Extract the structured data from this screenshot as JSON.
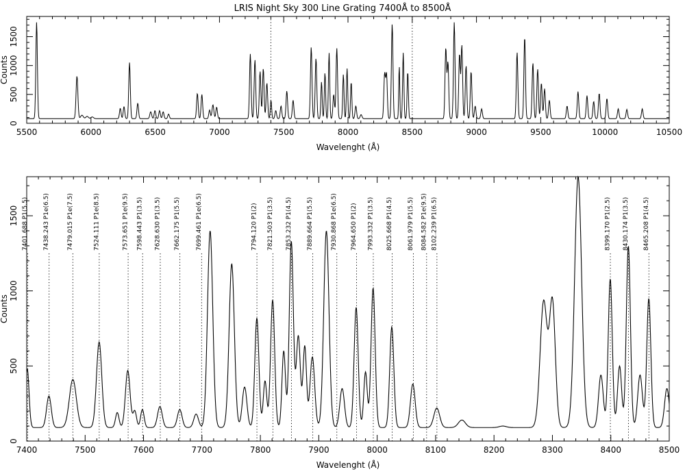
{
  "chart_data": [
    {
      "type": "line",
      "title": "LRIS Night Sky 300 Line Grating 7400Å to 8500Å",
      "xlabel": "Wavelenght (Å)",
      "ylabel": "Counts",
      "xlim": [
        5500,
        10500
      ],
      "ylim": [
        0,
        1850
      ],
      "xticks": [
        5500,
        6000,
        6500,
        7000,
        7500,
        8000,
        8500,
        9000,
        9500,
        10000,
        10500
      ],
      "yticks": [
        0,
        500,
        1000,
        1500
      ],
      "vlines": [
        7400,
        8500
      ],
      "baseline": 80,
      "peaks": [
        [
          5577,
          1750,
          6
        ],
        [
          5891,
          820,
          7
        ],
        [
          5930,
          140,
          10
        ],
        [
          5970,
          120,
          10
        ],
        [
          6010,
          110,
          10
        ],
        [
          6228,
          260,
          6
        ],
        [
          6257,
          290,
          6
        ],
        [
          6300,
          1050,
          6
        ],
        [
          6364,
          350,
          6
        ],
        [
          6465,
          200,
          7
        ],
        [
          6498,
          220,
          6
        ],
        [
          6534,
          220,
          6
        ],
        [
          6562,
          200,
          6
        ],
        [
          6604,
          160,
          6
        ],
        [
          6828,
          520,
          6
        ],
        [
          6863,
          500,
          6
        ],
        [
          6923,
          230,
          6
        ],
        [
          6949,
          320,
          7
        ],
        [
          6978,
          280,
          6
        ],
        [
          7240,
          1200,
          6
        ],
        [
          7276,
          1100,
          6
        ],
        [
          7316,
          900,
          6
        ],
        [
          7341,
          950,
          6
        ],
        [
          7369,
          700,
          6
        ],
        [
          7401,
          400,
          5
        ],
        [
          7438,
          220,
          6
        ],
        [
          7479,
          300,
          6
        ],
        [
          7524,
          560,
          6
        ],
        [
          7573,
          400,
          6
        ],
        [
          7714,
          1320,
          6
        ],
        [
          7751,
          1130,
          6
        ],
        [
          7794,
          720,
          5
        ],
        [
          7821,
          880,
          5
        ],
        [
          7853,
          1220,
          5
        ],
        [
          7889,
          500,
          6
        ],
        [
          7913,
          1300,
          6
        ],
        [
          7964,
          850,
          5
        ],
        [
          7993,
          950,
          5
        ],
        [
          8025,
          720,
          5
        ],
        [
          8061,
          300,
          6
        ],
        [
          8102,
          150,
          7
        ],
        [
          8285,
          850,
          6
        ],
        [
          8300,
          850,
          6
        ],
        [
          8344,
          1720,
          6
        ],
        [
          8399,
          1000,
          4
        ],
        [
          8430,
          1220,
          5
        ],
        [
          8465,
          900,
          5
        ],
        [
          8761,
          1300,
          6
        ],
        [
          8778,
          1050,
          6
        ],
        [
          8827,
          1750,
          6
        ],
        [
          8868,
          1200,
          6
        ],
        [
          8886,
          1350,
          6
        ],
        [
          8919,
          1000,
          6
        ],
        [
          8958,
          900,
          6
        ],
        [
          8990,
          300,
          6
        ],
        [
          9040,
          250,
          6
        ],
        [
          9316,
          1230,
          6
        ],
        [
          9375,
          1500,
          6
        ],
        [
          9439,
          1050,
          6
        ],
        [
          9476,
          940,
          6
        ],
        [
          9505,
          700,
          6
        ],
        [
          9530,
          600,
          6
        ],
        [
          9567,
          400,
          6
        ],
        [
          9705,
          300,
          6
        ],
        [
          9790,
          550,
          6
        ],
        [
          9860,
          480,
          6
        ],
        [
          9912,
          380,
          6
        ],
        [
          9955,
          520,
          6
        ],
        [
          10015,
          430,
          6
        ],
        [
          10103,
          250,
          6
        ],
        [
          10170,
          240,
          6
        ],
        [
          10290,
          250,
          6
        ]
      ]
    },
    {
      "type": "line",
      "xlabel": "Wavelenght (Å)",
      "ylabel": "Counts",
      "xlim": [
        7400,
        8500
      ],
      "ylim": [
        0,
        1760
      ],
      "xticks": [
        7400,
        7500,
        7600,
        7700,
        7800,
        7900,
        8000,
        8100,
        8200,
        8300,
        8400,
        8500
      ],
      "yticks": [
        0,
        500,
        1000,
        1500
      ],
      "baseline": 90,
      "peaks": [
        [
          7401,
          480,
          3
        ],
        [
          7438,
          300,
          4
        ],
        [
          7479,
          410,
          6
        ],
        [
          7524,
          660,
          4.5
        ],
        [
          7555,
          190,
          3
        ],
        [
          7573,
          470,
          4
        ],
        [
          7585,
          200,
          3
        ],
        [
          7598,
          210,
          3
        ],
        [
          7628,
          230,
          4
        ],
        [
          7662,
          210,
          4
        ],
        [
          7690,
          180,
          4
        ],
        [
          7714,
          1400,
          4.5
        ],
        [
          7751,
          1180,
          4.5
        ],
        [
          7773,
          360,
          4
        ],
        [
          7794,
          820,
          3.5
        ],
        [
          7808,
          400,
          3
        ],
        [
          7821,
          940,
          3.5
        ],
        [
          7840,
          600,
          3
        ],
        [
          7853,
          1330,
          3.5
        ],
        [
          7865,
          700,
          3.5
        ],
        [
          7876,
          630,
          3
        ],
        [
          7889,
          560,
          4
        ],
        [
          7913,
          1400,
          4.5
        ],
        [
          7940,
          350,
          4
        ],
        [
          7964,
          890,
          3.5
        ],
        [
          7980,
          460,
          3
        ],
        [
          7993,
          1020,
          3.5
        ],
        [
          8025,
          760,
          3.5
        ],
        [
          8061,
          380,
          4
        ],
        [
          8102,
          220,
          5
        ],
        [
          8145,
          140,
          6
        ],
        [
          8215,
          100,
          6
        ],
        [
          8285,
          930,
          6
        ],
        [
          8300,
          920,
          5
        ],
        [
          8344,
          1760,
          6
        ],
        [
          8383,
          440,
          4
        ],
        [
          8399,
          1080,
          3.5
        ],
        [
          8415,
          500,
          3.5
        ],
        [
          8430,
          1300,
          3.5
        ],
        [
          8450,
          440,
          4
        ],
        [
          8465,
          950,
          3.5
        ],
        [
          8496,
          350,
          4
        ]
      ],
      "lines": [
        {
          "wl": 7401.688,
          "label": "7401.688 P1(5.5)"
        },
        {
          "wl": 7438.243,
          "label": "7438.243 P1e(6.5)"
        },
        {
          "wl": 7479.015,
          "label": "7479.015 P1e(7.5)"
        },
        {
          "wl": 7524.111,
          "label": "7524.111 P1e(8.5)"
        },
        {
          "wl": 7573.651,
          "label": "7573.651 P1e(9.5)"
        },
        {
          "wl": 7598.443,
          "label": "7598.443 P1(3.5)"
        },
        {
          "wl": 7628.63,
          "label": "7628.630 P1(3.5)"
        },
        {
          "wl": 7662.175,
          "label": "7662.175 P1(5.5)"
        },
        {
          "wl": 7699.461,
          "label": "7699.461 P1e(6.5)"
        },
        {
          "wl": 7794.12,
          "label": "7794.120 P1(2)"
        },
        {
          "wl": 7821.503,
          "label": "7821.503 P1(3.5)"
        },
        {
          "wl": 7853.232,
          "label": "7853.232 P1(4.5)"
        },
        {
          "wl": 7889.664,
          "label": "7889.664 P1(5.5)"
        },
        {
          "wl": 7930.868,
          "label": "7930.868 P1e(6.5)"
        },
        {
          "wl": 7964.65,
          "label": "7964.650 P1(2)"
        },
        {
          "wl": 7993.332,
          "label": "7993.332 P1(3.5)"
        },
        {
          "wl": 8025.668,
          "label": "8025.668 P1(4.5)"
        },
        {
          "wl": 8061.979,
          "label": "8061.979 P1(5.5)"
        },
        {
          "wl": 8084.582,
          "label": "8084.582 P1e(9.5)"
        },
        {
          "wl": 8102.239,
          "label": "8102.239 P1(6.5)"
        },
        {
          "wl": 8399.17,
          "label": "8399.170 P1(2.5)"
        },
        {
          "wl": 8430.174,
          "label": "8430.174 P1(3.5)"
        },
        {
          "wl": 8465.208,
          "label": "8465.208 P1(4.5)"
        }
      ]
    }
  ]
}
